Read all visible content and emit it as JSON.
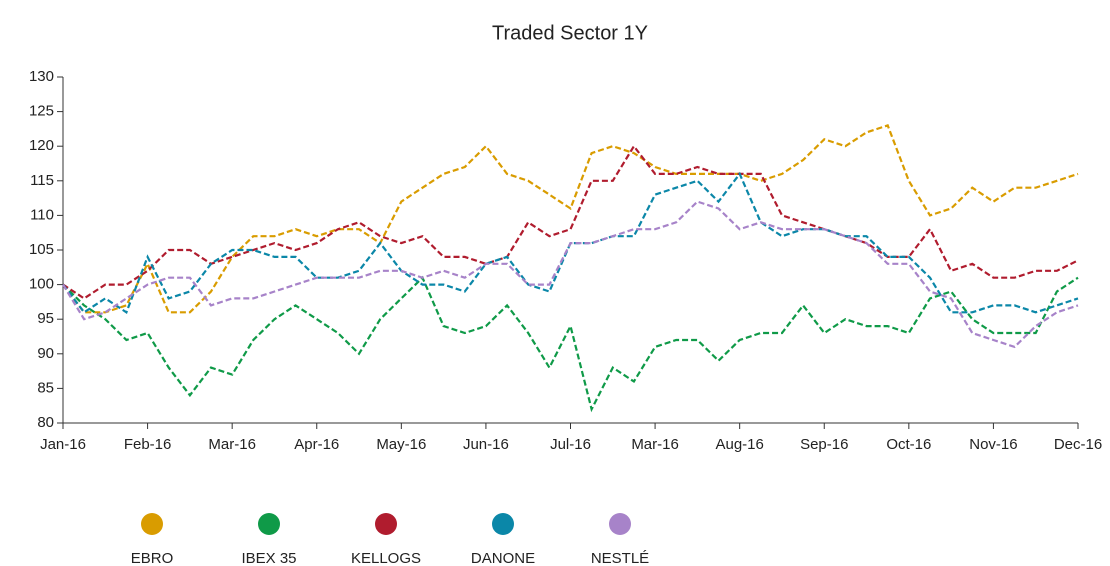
{
  "chart_data": {
    "type": "line",
    "title": "Traded Sector 1Y",
    "x": [
      0,
      0.25,
      0.5,
      0.75,
      1,
      1.25,
      1.5,
      1.75,
      2,
      2.25,
      2.5,
      2.75,
      3,
      3.25,
      3.5,
      3.75,
      4,
      4.25,
      4.5,
      4.75,
      5,
      5.25,
      5.5,
      5.75,
      6,
      6.25,
      6.5,
      6.75,
      7,
      7.25,
      7.5,
      7.75,
      8,
      8.25,
      8.5,
      8.75,
      9,
      9.25,
      9.5,
      9.75,
      10,
      10.25,
      10.5,
      10.75,
      11,
      11.25,
      11.5,
      11.75,
      12
    ],
    "xlim": [
      0,
      12
    ],
    "xticks": [
      {
        "value": 0,
        "label": "Jan-16"
      },
      {
        "value": 1,
        "label": "Feb-16"
      },
      {
        "value": 2,
        "label": "Mar-16"
      },
      {
        "value": 3,
        "label": "Apr-16"
      },
      {
        "value": 4,
        "label": "May-16"
      },
      {
        "value": 5,
        "label": "Jun-16"
      },
      {
        "value": 6,
        "label": "Jul-16"
      },
      {
        "value": 7,
        "label": "Mar-16"
      },
      {
        "value": 8,
        "label": "Aug-16"
      },
      {
        "value": 9,
        "label": "Sep-16"
      },
      {
        "value": 10,
        "label": "Oct-16"
      },
      {
        "value": 11,
        "label": "Nov-16"
      },
      {
        "value": 12,
        "label": "Dec-16"
      }
    ],
    "ylim": [
      80,
      130
    ],
    "yticks": [
      80,
      85,
      90,
      95,
      100,
      105,
      110,
      115,
      120,
      125,
      130
    ],
    "series": [
      {
        "name": "EBRO",
        "color": "#d99c00",
        "values": [
          100,
          96,
          96,
          97,
          103,
          96,
          96,
          99,
          104,
          107,
          107,
          108,
          107,
          108,
          108,
          106,
          112,
          114,
          116,
          117,
          120,
          116,
          115,
          113,
          111,
          119,
          120,
          119,
          117,
          116,
          116,
          116,
          116,
          115,
          116,
          118,
          121,
          120,
          122,
          123,
          115,
          110,
          111,
          114,
          112,
          114,
          114,
          115,
          116
        ]
      },
      {
        "name": "IBEX 35",
        "color": "#0f9a48",
        "values": [
          100,
          97,
          95,
          92,
          93,
          88,
          84,
          88,
          87,
          92,
          95,
          97,
          95,
          93,
          90,
          95,
          98,
          101,
          94,
          93,
          94,
          97,
          93,
          88,
          94,
          82,
          88,
          86,
          91,
          92,
          92,
          89,
          92,
          93,
          93,
          97,
          93,
          95,
          94,
          94,
          93,
          98,
          99,
          95,
          93,
          93,
          93,
          99,
          101
        ]
      },
      {
        "name": "KELLOGS",
        "color": "#b01c2e",
        "values": [
          100,
          98,
          100,
          100,
          102,
          105,
          105,
          103,
          104,
          105,
          106,
          105,
          106,
          108,
          109,
          107,
          106,
          107,
          104,
          104,
          103,
          104,
          109,
          107,
          108,
          115,
          115,
          120,
          116,
          116,
          117,
          116,
          116,
          116,
          110,
          109,
          108,
          107,
          106,
          104,
          104,
          108,
          102,
          103,
          101,
          101,
          102,
          102,
          103.5
        ]
      },
      {
        "name": "DANONE",
        "color": "#0b87a8",
        "values": [
          100,
          96,
          98,
          96,
          104,
          98,
          99,
          103,
          105,
          105,
          104,
          104,
          101,
          101,
          102,
          106,
          102,
          100,
          100,
          99,
          103,
          104,
          100,
          99,
          106,
          106,
          107,
          107,
          113,
          114,
          115,
          112,
          116,
          109,
          107,
          108,
          108,
          107,
          107,
          104,
          104,
          101,
          96,
          96,
          97,
          97,
          96,
          97,
          98
        ]
      },
      {
        "name": "NESTLÉ",
        "color": "#a783c9",
        "values": [
          100,
          95,
          96,
          98,
          100,
          101,
          101,
          97,
          98,
          98,
          99,
          100,
          101,
          101,
          101,
          102,
          102,
          101,
          102,
          101,
          103,
          103,
          100,
          100,
          106,
          106,
          107,
          108,
          108,
          109,
          112,
          111,
          108,
          109,
          108,
          108,
          108,
          107,
          106,
          103,
          103,
          99,
          98,
          93,
          92,
          91,
          94,
          96,
          97
        ]
      }
    ]
  }
}
